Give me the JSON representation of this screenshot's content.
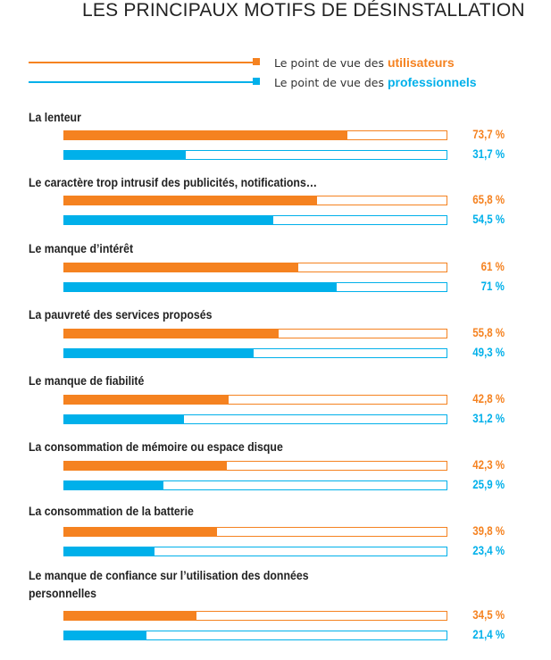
{
  "title": "LES PRINCIPAUX MOTIFS DE DÉSINSTALLATION",
  "colors": {
    "users": "#f58220",
    "pros": "#00b0ea"
  },
  "legend": {
    "users": {
      "prefix": "Le point de vue des ",
      "strong": "utilisateurs"
    },
    "pros": {
      "prefix": "Le point de vue des ",
      "strong": "professionnels"
    }
  },
  "chart_data": {
    "type": "bar",
    "orientation": "horizontal",
    "title": "LES PRINCIPAUX MOTIFS DE DÉSINSTALLATION",
    "xlim": [
      0,
      100
    ],
    "unit": "%",
    "categories": [
      "La lenteur",
      "Le caractère trop intrusif des publicités, notifications…",
      "Le manque d’intérêt",
      "La pauvreté des services proposés",
      "Le manque de fiabilité",
      "La consommation de mémoire ou espace disque",
      "La consommation de la batterie",
      "Le manque de confiance sur l’utilisation des données personnelles"
    ],
    "series": [
      {
        "name": "Le point de vue des utilisateurs",
        "values": [
          73.7,
          65.8,
          61,
          55.8,
          42.8,
          42.3,
          39.8,
          34.5
        ],
        "labels": [
          "73,7 %",
          "65,8 %",
          "61 %",
          "55,8 %",
          "42,8 %",
          "42,3 %",
          "39,8 %",
          "34,5 %"
        ]
      },
      {
        "name": "Le point de vue des professionnels",
        "values": [
          31.7,
          54.5,
          71,
          49.3,
          31.2,
          25.9,
          23.4,
          21.4
        ],
        "labels": [
          "31,7 %",
          "54,5 %",
          "71 %",
          "49,3 %",
          "31,2 %",
          "25,9 %",
          "23,4 %",
          "21,4 %"
        ]
      }
    ]
  }
}
